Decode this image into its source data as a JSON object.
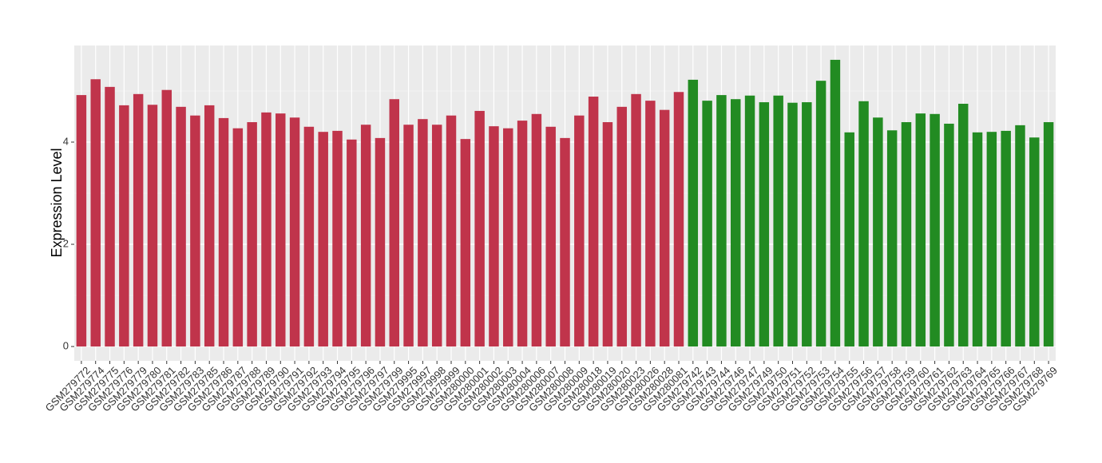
{
  "chart_data": {
    "type": "bar",
    "y_label": "Expression Level",
    "categories": [
      "GSM279772",
      "GSM279774",
      "GSM279775",
      "GSM279776",
      "GSM279779",
      "GSM279780",
      "GSM279781",
      "GSM279782",
      "GSM279783",
      "GSM279785",
      "GSM279786",
      "GSM279787",
      "GSM279788",
      "GSM279789",
      "GSM279790",
      "GSM279791",
      "GSM279792",
      "GSM279793",
      "GSM279794",
      "GSM279795",
      "GSM279796",
      "GSM279797",
      "GSM279799",
      "GSM279995",
      "GSM279997",
      "GSM279998",
      "GSM279999",
      "GSM280000",
      "GSM280001",
      "GSM280002",
      "GSM280003",
      "GSM280004",
      "GSM280006",
      "GSM280007",
      "GSM280008",
      "GSM280009",
      "GSM280018",
      "GSM280019",
      "GSM280020",
      "GSM280023",
      "GSM280026",
      "GSM280028",
      "GSM280081",
      "GSM279742",
      "GSM279743",
      "GSM279744",
      "GSM279746",
      "GSM279747",
      "GSM279749",
      "GSM279750",
      "GSM279751",
      "GSM279752",
      "GSM279753",
      "GSM279754",
      "GSM279755",
      "GSM279756",
      "GSM279757",
      "GSM279758",
      "GSM279759",
      "GSM279760",
      "GSM279761",
      "GSM279762",
      "GSM279763",
      "GSM279764",
      "GSM279765",
      "GSM279766",
      "GSM279767",
      "GSM279768",
      "GSM279769"
    ],
    "values": [
      4.92,
      5.23,
      5.08,
      4.72,
      4.94,
      4.73,
      5.02,
      4.69,
      4.52,
      4.72,
      4.47,
      4.27,
      4.39,
      4.58,
      4.56,
      4.48,
      4.3,
      4.2,
      4.22,
      4.05,
      4.34,
      4.08,
      4.84,
      4.34,
      4.45,
      4.34,
      4.52,
      4.06,
      4.61,
      4.31,
      4.27,
      4.42,
      4.55,
      4.3,
      4.08,
      4.52,
      4.89,
      4.39,
      4.69,
      4.94,
      4.81,
      4.63,
      4.98,
      5.22,
      4.81,
      4.92,
      4.84,
      4.91,
      4.78,
      4.91,
      4.77,
      4.78,
      5.2,
      5.61,
      4.19,
      4.8,
      4.48,
      4.23,
      4.39,
      4.56,
      4.55,
      4.36,
      4.75,
      4.19,
      4.2,
      4.22,
      4.33,
      4.09,
      4.39
    ],
    "colors": [
      "#c0344b",
      "#c0344b",
      "#c0344b",
      "#c0344b",
      "#c0344b",
      "#c0344b",
      "#c0344b",
      "#c0344b",
      "#c0344b",
      "#c0344b",
      "#c0344b",
      "#c0344b",
      "#c0344b",
      "#c0344b",
      "#c0344b",
      "#c0344b",
      "#c0344b",
      "#c0344b",
      "#c0344b",
      "#c0344b",
      "#c0344b",
      "#c0344b",
      "#c0344b",
      "#c0344b",
      "#c0344b",
      "#c0344b",
      "#c0344b",
      "#c0344b",
      "#c0344b",
      "#c0344b",
      "#c0344b",
      "#c0344b",
      "#c0344b",
      "#c0344b",
      "#c0344b",
      "#c0344b",
      "#c0344b",
      "#c0344b",
      "#c0344b",
      "#c0344b",
      "#c0344b",
      "#c0344b",
      "#c0344b",
      "#228b22",
      "#228b22",
      "#228b22",
      "#228b22",
      "#228b22",
      "#228b22",
      "#228b22",
      "#228b22",
      "#228b22",
      "#228b22",
      "#228b22",
      "#228b22",
      "#228b22",
      "#228b22",
      "#228b22",
      "#228b22",
      "#228b22",
      "#228b22",
      "#228b22",
      "#228b22",
      "#228b22",
      "#228b22",
      "#228b22",
      "#228b22",
      "#228b22",
      "#228b22"
    ],
    "ylim": [
      -0.28,
      5.89
    ],
    "yticks": [
      0,
      2,
      4
    ],
    "minor_yticks": [
      1,
      3,
      5
    ],
    "grid": true
  }
}
